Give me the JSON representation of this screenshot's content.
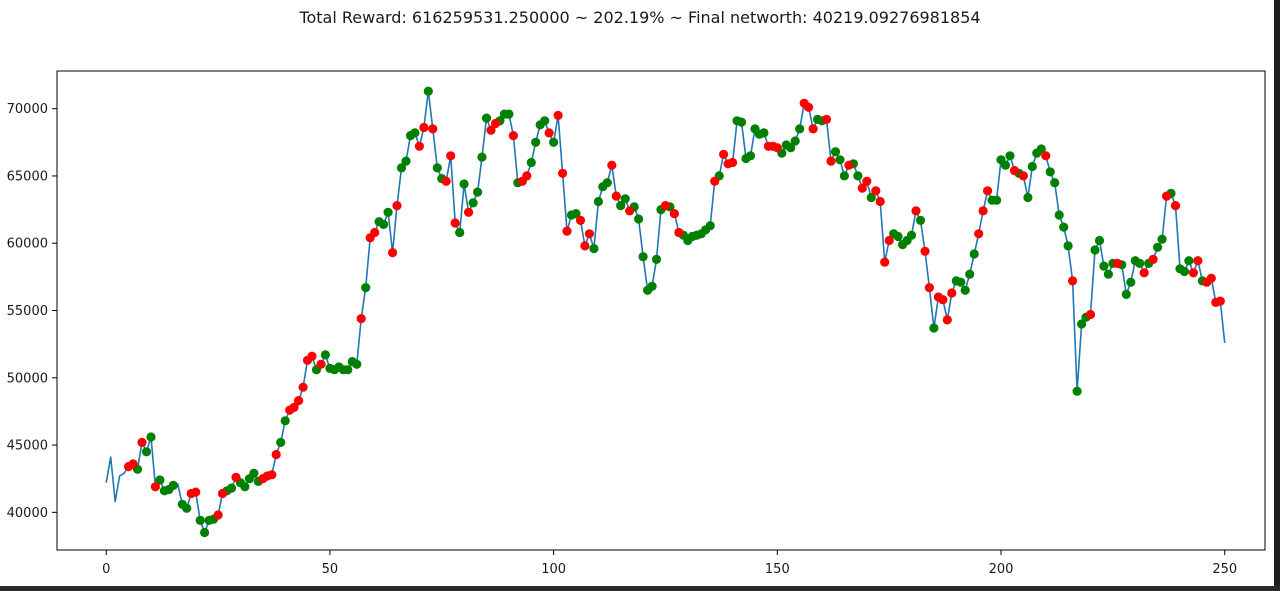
{
  "chart_data": {
    "type": "line",
    "title": "Total Reward: 616259531.250000 ~ 202.19% ~ Final networth: 40219.09276981854",
    "xlabel": "",
    "ylabel": "",
    "xlim": [
      -11,
      259
    ],
    "ylim": [
      37200,
      72800
    ],
    "xticks": [
      0,
      50,
      100,
      150,
      200,
      250
    ],
    "yticks": [
      40000,
      45000,
      50000,
      55000,
      60000,
      65000,
      70000
    ],
    "grid": false,
    "colors": {
      "line": "#1f77b4",
      "buy": "#008000",
      "sell": "#ff0000"
    },
    "series": [
      {
        "values": [
          42200,
          44100,
          40800,
          42700,
          42900,
          43400,
          43600,
          43200,
          45200,
          44500,
          45600,
          41900,
          42400,
          41600,
          41700,
          42000,
          42100,
          40600,
          40300,
          41400,
          41500,
          39400,
          38500,
          39400,
          39500,
          39800,
          41400,
          41600,
          41800,
          42600,
          42200,
          41900,
          42500,
          42900,
          42300,
          42500,
          42700,
          42800,
          44300,
          45200,
          46800,
          47600,
          47800,
          48300,
          49300,
          51300,
          51600,
          50600,
          51000,
          51700,
          50700,
          50600,
          50800,
          50600,
          50600,
          51200,
          51000,
          54400,
          56700,
          60400,
          60800,
          61600,
          61400,
          62300,
          59300,
          62800,
          65600,
          66100,
          68000,
          68200,
          67200,
          68600,
          71300,
          68500,
          65600,
          64800,
          64600,
          66500,
          61500,
          60800,
          64400,
          62300,
          63000,
          63800,
          66400,
          69300,
          68400,
          68900,
          69100,
          69600,
          69600,
          68000,
          64500,
          64600,
          65000,
          66000,
          67500,
          68800,
          69100,
          68200,
          67500,
          69500,
          65200,
          60900,
          62100,
          62200,
          61700,
          59800,
          60700,
          59600,
          63100,
          64200,
          64500,
          65800,
          63500,
          62800,
          63300,
          62400,
          62700,
          61800,
          59000,
          56500,
          56800,
          58800,
          62500,
          62800,
          62700,
          62200,
          60800,
          60600,
          60200,
          60500,
          60600,
          60700,
          61000,
          61300,
          64600,
          65000,
          66600,
          65900,
          66000,
          69100,
          69000,
          66300,
          66500,
          68500,
          68100,
          68200,
          67200,
          67200,
          67100,
          66700,
          67300,
          67100,
          67600,
          68500,
          70400,
          70100,
          68500,
          69200,
          69100,
          69200,
          66100,
          66800,
          66200,
          65000,
          65800,
          65900,
          65000,
          64100,
          64600,
          63400,
          63900,
          63100,
          58600,
          60200,
          60700,
          60500,
          59900,
          60200,
          60600,
          62400,
          61700,
          59400,
          56700,
          53700,
          56000,
          55800,
          54300,
          56300,
          57200,
          57100,
          56500,
          57700,
          59200,
          60700,
          62400,
          63900,
          63200,
          63200,
          66200,
          65800,
          66500,
          65400,
          65200,
          65000,
          63400,
          65700,
          66700,
          67000,
          66500,
          65300,
          64500,
          62100,
          61200,
          59800,
          57200,
          49000,
          54000,
          54500,
          54700,
          59500,
          60200,
          58300,
          57700,
          58500,
          58500,
          58400,
          56200,
          57100,
          58700,
          58500,
          57800,
          58500,
          58800,
          59700,
          60300,
          63500,
          63700,
          62800,
          58100,
          57900,
          58700,
          57800,
          58700,
          57200,
          57100,
          57400,
          55600,
          55700,
          52600
        ]
      }
    ],
    "markers": {
      "buy": [
        7,
        9,
        10,
        12,
        13,
        14,
        15,
        17,
        18,
        21,
        22,
        23,
        24,
        27,
        28,
        30,
        31,
        32,
        33,
        34,
        39,
        40,
        47,
        49,
        50,
        51,
        52,
        53,
        54,
        55,
        56,
        58,
        61,
        62,
        63,
        66,
        67,
        68,
        69,
        72,
        74,
        75,
        79,
        80,
        82,
        83,
        84,
        85,
        88,
        89,
        90,
        92,
        95,
        96,
        97,
        98,
        100,
        104,
        105,
        109,
        110,
        111,
        112,
        115,
        116,
        118,
        119,
        120,
        121,
        122,
        123,
        124,
        126,
        129,
        130,
        131,
        132,
        133,
        134,
        135,
        137,
        141,
        142,
        143,
        144,
        145,
        146,
        147,
        151,
        152,
        153,
        154,
        155,
        159,
        160,
        163,
        164,
        165,
        167,
        168,
        171,
        176,
        177,
        178,
        179,
        180,
        182,
        185,
        190,
        191,
        192,
        193,
        194,
        198,
        199,
        200,
        201,
        202,
        204,
        206,
        207,
        208,
        209,
        211,
        212,
        213,
        214,
        215,
        217,
        218,
        219,
        221,
        222,
        223,
        224,
        225,
        227,
        228,
        229,
        230,
        231,
        233,
        235,
        236,
        238,
        240,
        241,
        242,
        245
      ],
      "sell": [
        5,
        6,
        8,
        11,
        19,
        20,
        25,
        26,
        29,
        35,
        36,
        37,
        38,
        41,
        42,
        43,
        44,
        45,
        46,
        48,
        57,
        59,
        60,
        64,
        65,
        70,
        71,
        73,
        76,
        77,
        78,
        81,
        86,
        87,
        91,
        93,
        94,
        99,
        101,
        102,
        103,
        106,
        107,
        108,
        113,
        114,
        117,
        125,
        127,
        128,
        136,
        138,
        139,
        140,
        148,
        149,
        150,
        156,
        157,
        158,
        161,
        162,
        166,
        169,
        170,
        172,
        173,
        174,
        175,
        181,
        183,
        184,
        186,
        187,
        188,
        189,
        195,
        196,
        197,
        203,
        205,
        210,
        216,
        220,
        226,
        232,
        234,
        237,
        239,
        243,
        244,
        246,
        247,
        248,
        249
      ]
    }
  }
}
